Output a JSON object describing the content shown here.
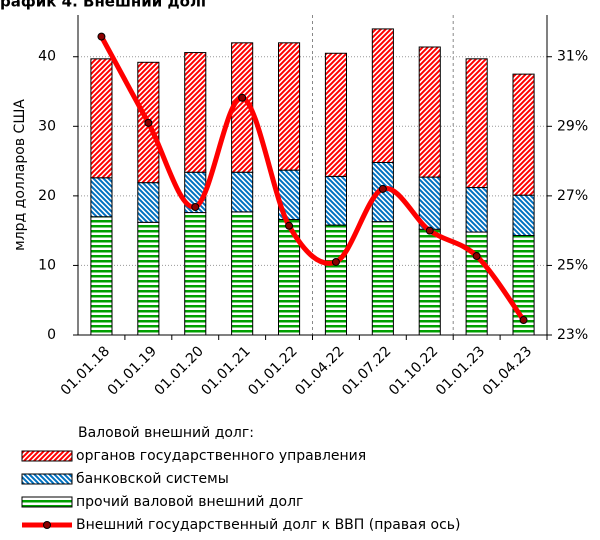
{
  "chart_data": {
    "type": "bar",
    "title": "рафик 4. Внешний долг",
    "y_label": "млрд долларов США",
    "categories": [
      "01.01.18",
      "01.01.19",
      "01.01.20",
      "01.01.21",
      "01.01.22",
      "01.04.22",
      "01.07.22",
      "01.10.22",
      "01.01.23",
      "01.04.23"
    ],
    "legend_title": "Валовой внешний долг:",
    "series": [
      {
        "name": "органов государственного управления",
        "color": "#ff0000",
        "values": [
          17.1,
          17.3,
          17.2,
          18.6,
          18.3,
          17.7,
          19.2,
          18.7,
          18.5,
          17.4
        ]
      },
      {
        "name": "банковской системы",
        "color": "#0070c0",
        "values": [
          5.6,
          5.7,
          5.8,
          5.7,
          7.1,
          7.0,
          8.5,
          7.5,
          6.4,
          5.8
        ]
      },
      {
        "name": "прочий валовой внешний долг",
        "color": "#00a000",
        "values": [
          17.0,
          16.2,
          17.6,
          17.7,
          16.6,
          15.8,
          16.3,
          15.2,
          14.8,
          14.3
        ]
      },
      {
        "name": "Внешний государственный долг к ВВП (правая ось)",
        "color": "#ff0000",
        "type": "line",
        "axis": "y2",
        "values": [
          31.58,
          29.1,
          26.68,
          29.82,
          26.14,
          25.1,
          27.2,
          26.0,
          25.27,
          23.43
        ]
      }
    ],
    "ylim": [
      0,
      46
    ],
    "yticks": [
      0,
      10,
      20,
      30,
      40
    ],
    "y2lim": [
      23,
      32.2
    ],
    "y2ticks": [
      {
        "value": 23,
        "label": "23%"
      },
      {
        "value": 25,
        "label": "25%"
      },
      {
        "value": 27,
        "label": "27%"
      },
      {
        "value": 29,
        "label": "29%"
      },
      {
        "value": 31,
        "label": "31%"
      }
    ],
    "grid": true
  }
}
